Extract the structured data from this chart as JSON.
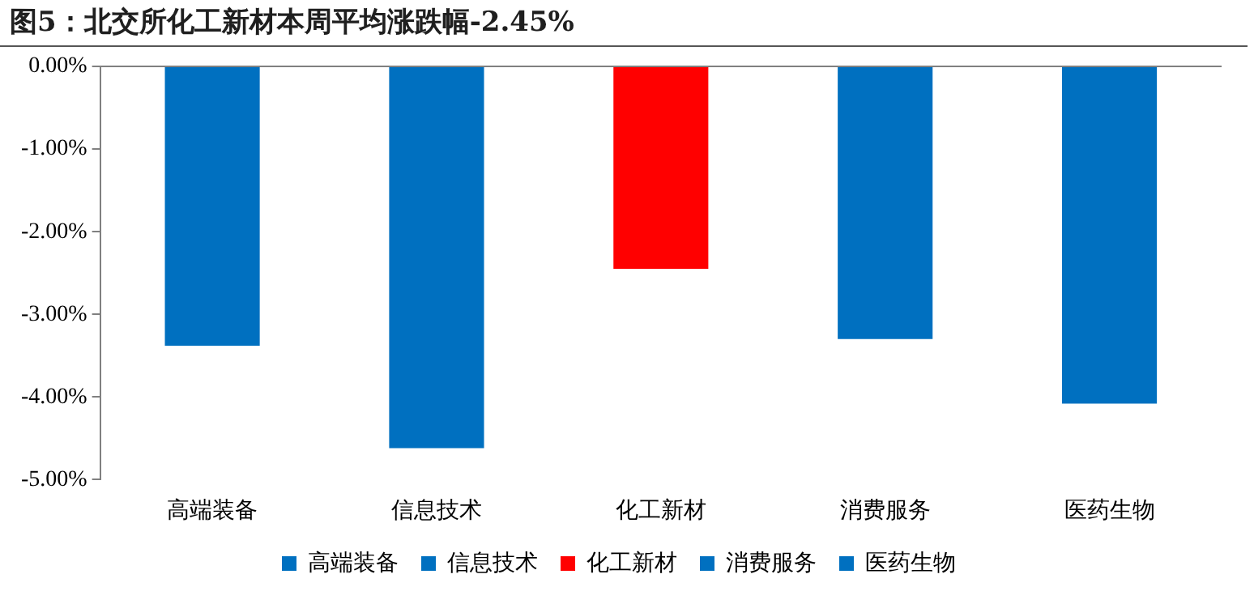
{
  "chart_data": {
    "type": "bar",
    "title": "图5：北交所化工新材本周平均涨跌幅-2.45%",
    "categories": [
      "高端装备",
      "信息技术",
      "化工新材",
      "消费服务",
      "医药生物"
    ],
    "series": [
      {
        "name": "高端装备",
        "color": "#0070c0",
        "values": [
          -3.38,
          null,
          null,
          null,
          null
        ]
      },
      {
        "name": "信息技术",
        "color": "#0070c0",
        "values": [
          null,
          -4.62,
          null,
          null,
          null
        ]
      },
      {
        "name": "化工新材",
        "color": "#ff0000",
        "values": [
          null,
          null,
          -2.45,
          null,
          null
        ]
      },
      {
        "name": "消费服务",
        "color": "#0070c0",
        "values": [
          null,
          null,
          null,
          -3.3,
          null
        ]
      },
      {
        "name": "医药生物",
        "color": "#0070c0",
        "values": [
          null,
          null,
          null,
          null,
          -4.08
        ]
      }
    ],
    "ylim": [
      -5,
      0
    ],
    "yticks": [
      {
        "value": -5,
        "label": "-5.00%"
      },
      {
        "value": -4,
        "label": "-4.00%"
      },
      {
        "value": -3,
        "label": "-3.00%"
      },
      {
        "value": -2,
        "label": "-2.00%"
      },
      {
        "value": -1,
        "label": "-1.00%"
      },
      {
        "value": 0,
        "label": "0.00%"
      }
    ],
    "legend": "bottom"
  }
}
